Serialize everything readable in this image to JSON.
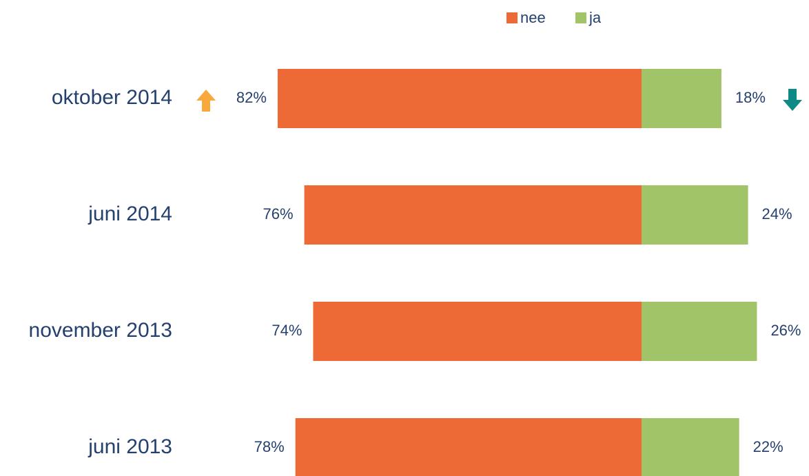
{
  "chart_data": {
    "type": "bar",
    "orientation": "horizontal",
    "stacking": "diverging",
    "categories": [
      "oktober 2014",
      "juni 2014",
      "november 2013",
      "juni 2013"
    ],
    "series": [
      {
        "name": "nee",
        "color": "#ed6a37",
        "values": [
          82,
          76,
          74,
          78
        ],
        "value_labels": [
          "82%",
          "76%",
          "74%",
          "78%"
        ]
      },
      {
        "name": "ja",
        "color": "#a2c468",
        "values": [
          18,
          24,
          26,
          22
        ],
        "value_labels": [
          "18%",
          "24%",
          "26%",
          "22%"
        ]
      }
    ],
    "legend": "top"
  }
}
